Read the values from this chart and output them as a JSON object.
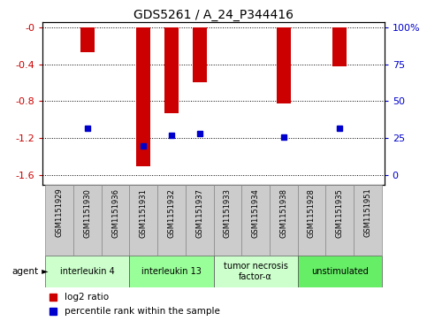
{
  "title": "GDS5261 / A_24_P344416",
  "samples": [
    "GSM1151929",
    "GSM1151930",
    "GSM1151936",
    "GSM1151931",
    "GSM1151932",
    "GSM1151937",
    "GSM1151933",
    "GSM1151934",
    "GSM1151938",
    "GSM1151928",
    "GSM1151935",
    "GSM1151951"
  ],
  "log2_ratio": [
    0,
    -0.27,
    0,
    -1.5,
    -0.93,
    -0.6,
    0,
    0,
    -0.82,
    0,
    -0.42,
    0
  ],
  "percentile": [
    0,
    32,
    0,
    20,
    27,
    28,
    0,
    0,
    26,
    0,
    32,
    0
  ],
  "has_bar": [
    false,
    true,
    false,
    true,
    true,
    true,
    false,
    false,
    true,
    false,
    true,
    false
  ],
  "has_percentile": [
    false,
    true,
    false,
    true,
    true,
    true,
    false,
    false,
    true,
    false,
    true,
    false
  ],
  "ymin": -1.7,
  "ymax": 0.05,
  "yticks_left": [
    0,
    -0.4,
    -0.8,
    -1.2,
    -1.6
  ],
  "ytick_labels_left": [
    "-0",
    "-0.4",
    "-0.8",
    "-1.2",
    "-1.6"
  ],
  "right_pct_ticks": [
    100,
    75,
    50,
    25,
    0
  ],
  "right_pct_labels": [
    "100%",
    "75",
    "50",
    "25",
    "0"
  ],
  "groups": [
    {
      "label": "interleukin 4",
      "start": 0,
      "end": 3,
      "color": "#ccffcc"
    },
    {
      "label": "interleukin 13",
      "start": 3,
      "end": 6,
      "color": "#99ff99"
    },
    {
      "label": "tumor necrosis\nfactor-α",
      "start": 6,
      "end": 9,
      "color": "#ccffcc"
    },
    {
      "label": "unstimulated",
      "start": 9,
      "end": 12,
      "color": "#66ee66"
    }
  ],
  "bar_color": "#cc0000",
  "percentile_color": "#0000cc",
  "bg_color": "#ffffff",
  "label_color_left": "#cc0000",
  "label_color_right": "#0000cc",
  "legend_items": [
    "log2 ratio",
    "percentile rank within the sample"
  ],
  "bar_width": 0.5
}
